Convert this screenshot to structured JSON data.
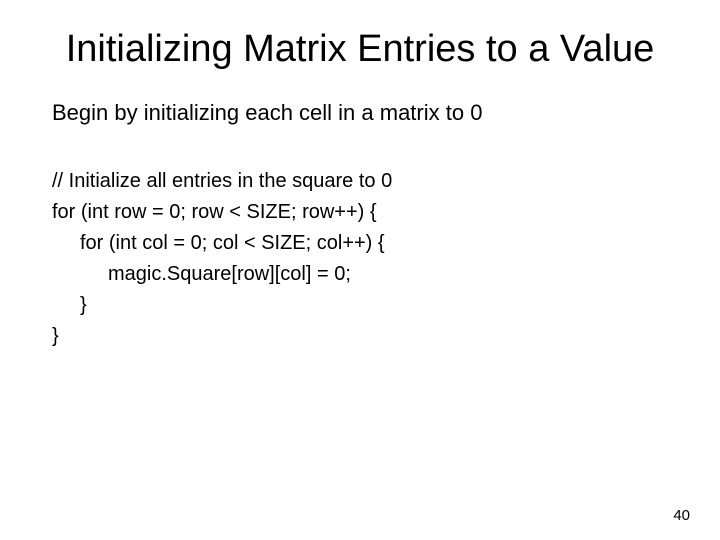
{
  "slide": {
    "title": "Initializing Matrix Entries to a Value",
    "subtitle": "Begin by initializing each cell in a matrix to 0",
    "code": {
      "line1": "// Initialize all entries in the square to 0",
      "line2": "for (int row = 0; row < SIZE; row++) {",
      "line3": "for (int col = 0; col < SIZE; col++) {",
      "line4": "magic.Square[row][col] = 0;",
      "line5": "}",
      "line6": "}"
    },
    "page_number": "40",
    "colors": {
      "background": "#ffffff",
      "text": "#000000"
    },
    "typography": {
      "title_fontsize": 38,
      "subtitle_fontsize": 22,
      "code_fontsize": 20,
      "pagenum_fontsize": 15,
      "font_family": "Arial"
    }
  }
}
